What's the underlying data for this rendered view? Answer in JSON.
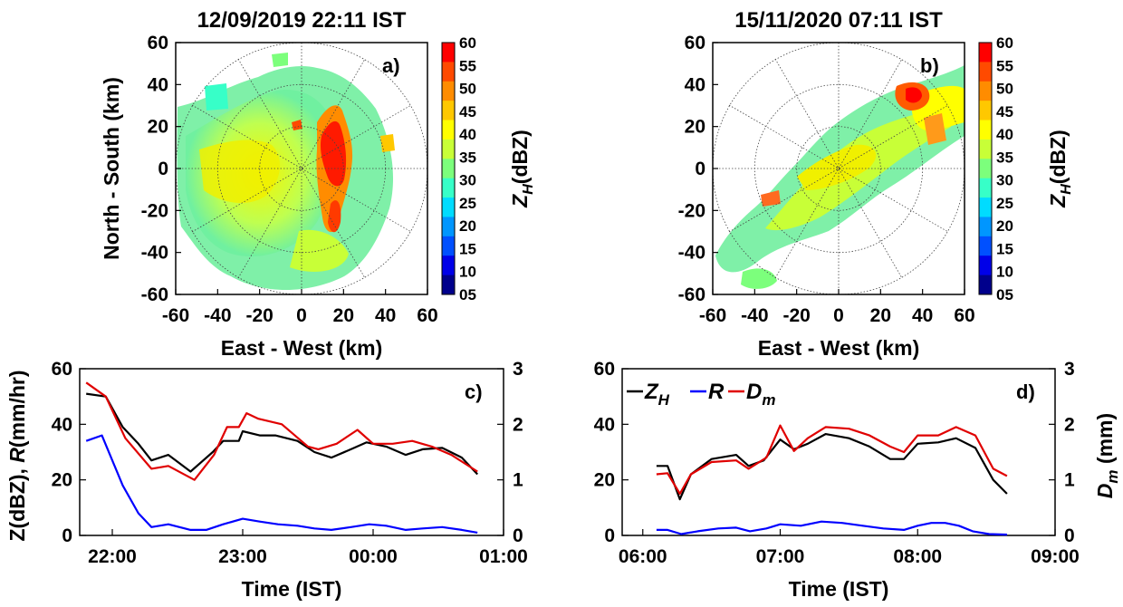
{
  "colorbar": {
    "ticks": [
      "60",
      "55",
      "50",
      "45",
      "40",
      "35",
      "30",
      "25",
      "20",
      "15",
      "10",
      "05"
    ],
    "label": "Z_H(dBZ)",
    "label_main": "Z",
    "label_sub": "H",
    "label_tail": "(dBZ)",
    "colors": [
      "#ff0000",
      "#ff4a00",
      "#ff8c00",
      "#ffc800",
      "#ffff00",
      "#c8ff37",
      "#7cff7c",
      "#37ffc8",
      "#00dcff",
      "#0096ff",
      "#0050ff",
      "#0000e8",
      "#00008c"
    ]
  },
  "chart_data": [
    {
      "type": "heatmap",
      "panel": "a)",
      "title": "12/09/2019 22:11 IST",
      "xlabel": "East - West (km)",
      "ylabel": "North - South (km)",
      "xlim": [
        -60,
        60
      ],
      "ylim": [
        -60,
        60
      ],
      "xticks": [
        "-60",
        "-40",
        "-20",
        "0",
        "20",
        "40",
        "60"
      ],
      "yticks": [
        "60",
        "40",
        "20",
        "0",
        "-20",
        "-40",
        "-60"
      ],
      "range_rings_km": [
        20,
        40,
        60
      ],
      "spokes_deg": 30,
      "colorbar_label": "Z_H(dBZ)",
      "clim": [
        5,
        60
      ]
    },
    {
      "type": "heatmap",
      "panel": "b)",
      "title": "15/11/2020 07:11 IST",
      "xlabel": "East - West (km)",
      "ylabel": "",
      "xlim": [
        -60,
        60
      ],
      "ylim": [
        -60,
        60
      ],
      "xticks": [
        "-60",
        "-40",
        "-20",
        "0",
        "20",
        "40",
        "60"
      ],
      "yticks": [
        "60",
        "40",
        "20",
        "0",
        "-20",
        "-40",
        "-60"
      ],
      "range_rings_km": [
        20,
        40,
        60
      ],
      "spokes_deg": 30,
      "colorbar_label": "Z_H(dBZ)",
      "clim": [
        5,
        60
      ]
    },
    {
      "type": "line",
      "panel": "c)",
      "xlabel": "Time (IST)",
      "ylabel": "Z(dBZ), R(mm/hr)",
      "y2label": "",
      "xticks": [
        "22:00",
        "23:00",
        "00:00",
        "01:00"
      ],
      "yticks": [
        "0",
        "20",
        "40",
        "60"
      ],
      "y2ticks": [
        "0",
        "1",
        "2",
        "3"
      ],
      "xlim_hours": [
        21.75,
        25.0
      ],
      "ylim": [
        0,
        60
      ],
      "y2lim": [
        0,
        3
      ],
      "series": [
        {
          "name": "Z_H",
          "axis": "left",
          "color": "#000000",
          "x": [
            21.8,
            21.95,
            22.08,
            22.2,
            22.3,
            22.43,
            22.6,
            22.77,
            22.85,
            22.97,
            23.0,
            23.13,
            23.25,
            23.42,
            23.55,
            23.68,
            23.83,
            23.95,
            24.1,
            24.25,
            24.38,
            24.53,
            24.68,
            24.8
          ],
          "y": [
            51,
            50,
            39,
            33,
            27,
            29,
            23,
            30,
            34,
            34,
            37.5,
            36,
            36,
            34,
            30,
            28,
            31,
            33.5,
            32,
            29,
            31,
            31.5,
            28,
            22
          ]
        },
        {
          "name": "R",
          "axis": "left",
          "color": "#0000ff",
          "x": [
            21.8,
            21.92,
            22.0,
            22.08,
            22.2,
            22.3,
            22.43,
            22.6,
            22.72,
            22.85,
            23.0,
            23.13,
            23.27,
            23.42,
            23.55,
            23.68,
            23.83,
            23.97,
            24.1,
            24.25,
            24.38,
            24.53,
            24.68,
            24.8
          ],
          "y": [
            34,
            36,
            27,
            18,
            8,
            3,
            4,
            2,
            2,
            4,
            6,
            5,
            4,
            3.5,
            2.5,
            2,
            3,
            4,
            3.5,
            2,
            2.5,
            3,
            2,
            1
          ]
        },
        {
          "name": "D_m",
          "axis": "right",
          "color": "#e00000",
          "x": [
            21.8,
            21.95,
            22.1,
            22.3,
            22.43,
            22.63,
            22.78,
            22.88,
            22.97,
            23.03,
            23.12,
            23.3,
            23.5,
            23.58,
            23.72,
            23.88,
            24.0,
            24.15,
            24.3,
            24.45,
            24.6,
            24.8
          ],
          "y": [
            2.75,
            2.5,
            1.75,
            1.2,
            1.25,
            1.0,
            1.45,
            1.95,
            1.95,
            2.2,
            2.1,
            2.0,
            1.6,
            1.55,
            1.65,
            1.9,
            1.65,
            1.65,
            1.7,
            1.6,
            1.45,
            1.15
          ]
        }
      ]
    },
    {
      "type": "line",
      "panel": "d)",
      "xlabel": "Time (IST)",
      "ylabel": "",
      "y2label": "D_m (mm)",
      "xticks": [
        "06:00",
        "07:00",
        "08:00",
        "09:00"
      ],
      "yticks": [
        "0",
        "20",
        "40",
        "60"
      ],
      "y2ticks": [
        "0",
        "1",
        "2",
        "3"
      ],
      "xlim_hours": [
        5.85,
        9.0
      ],
      "ylim": [
        0,
        60
      ],
      "y2lim": [
        0,
        3
      ],
      "series": [
        {
          "name": "Z_H",
          "axis": "left",
          "color": "#000000",
          "x": [
            6.1,
            6.18,
            6.27,
            6.35,
            6.5,
            6.68,
            6.77,
            6.88,
            7.0,
            7.1,
            7.2,
            7.33,
            7.5,
            7.65,
            7.8,
            7.9,
            8.0,
            8.15,
            8.28,
            8.42,
            8.55,
            8.65
          ],
          "y": [
            25,
            25,
            13,
            22,
            27.5,
            29,
            25,
            27,
            34.5,
            31,
            33,
            36.5,
            35,
            32,
            27.5,
            27.5,
            33,
            33.5,
            35,
            31.5,
            20,
            15
          ]
        },
        {
          "name": "R",
          "axis": "left",
          "color": "#0000ff",
          "x": [
            6.1,
            6.18,
            6.28,
            6.4,
            6.55,
            6.68,
            6.78,
            6.9,
            7.0,
            7.15,
            7.3,
            7.45,
            7.6,
            7.75,
            7.9,
            8.0,
            8.1,
            8.2,
            8.3,
            8.4,
            8.52,
            8.65
          ],
          "y": [
            2,
            2,
            0.5,
            1.5,
            2.5,
            2.8,
            1.5,
            2.5,
            4,
            3.5,
            5,
            4.5,
            3.5,
            2.5,
            2,
            3.5,
            4.5,
            4.5,
            3.5,
            1.5,
            0.5,
            0.3
          ]
        },
        {
          "name": "D_m",
          "axis": "right",
          "color": "#e00000",
          "x": [
            6.1,
            6.18,
            6.27,
            6.35,
            6.5,
            6.68,
            6.77,
            6.9,
            7.0,
            7.1,
            7.2,
            7.33,
            7.5,
            7.65,
            7.8,
            7.9,
            8.0,
            8.15,
            8.28,
            8.42,
            8.55,
            8.65
          ],
          "y": [
            1.1,
            1.12,
            0.75,
            1.1,
            1.32,
            1.35,
            1.2,
            1.4,
            1.98,
            1.52,
            1.75,
            1.95,
            1.92,
            1.8,
            1.6,
            1.5,
            1.8,
            1.8,
            1.95,
            1.8,
            1.2,
            1.07
          ]
        }
      ]
    }
  ],
  "legend": {
    "items": [
      {
        "main": "Z",
        "sub": "H",
        "color": "#000000"
      },
      {
        "main": "R",
        "sub": "",
        "color": "#0000ff"
      },
      {
        "main": "D",
        "sub": "m",
        "color": "#e00000"
      }
    ]
  }
}
